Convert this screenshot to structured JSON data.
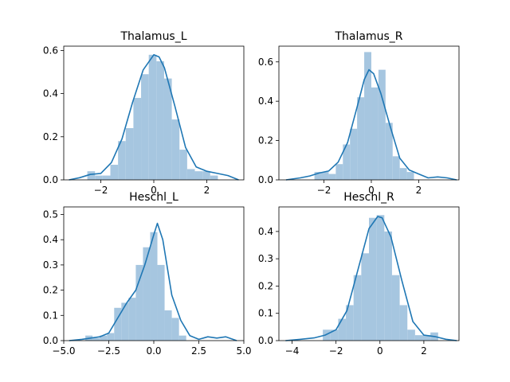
{
  "colors": {
    "bar": "#a6c6e0",
    "kde": "#1f77b4"
  },
  "chart_data": [
    {
      "type": "histogram",
      "title": "Thalamus_L",
      "xlim": [
        -3.4,
        3.4
      ],
      "ylim": [
        0,
        0.62
      ],
      "xticks": [
        -2,
        0,
        2
      ],
      "xtick_labels": [
        "−2",
        "0",
        "2"
      ],
      "yticks": [
        0.0,
        0.2,
        0.4,
        0.6
      ],
      "ytick_labels": [
        "0.0",
        "0.2",
        "0.4",
        "0.6"
      ],
      "bin_edges": [
        -2.51,
        -2.22,
        -1.93,
        -1.64,
        -1.35,
        -1.06,
        -0.77,
        -0.48,
        -0.19,
        0.1,
        0.39,
        0.68,
        0.97,
        1.26,
        1.55,
        1.84,
        2.13,
        2.42
      ],
      "bin_heights": [
        0.04,
        0.02,
        0.02,
        0.07,
        0.18,
        0.24,
        0.38,
        0.49,
        0.58,
        0.55,
        0.47,
        0.28,
        0.14,
        0.05,
        0.04,
        0.04,
        0.02
      ],
      "kde": {
        "x": [
          -3.2,
          -2.8,
          -2.4,
          -2.0,
          -1.6,
          -1.2,
          -0.8,
          -0.4,
          0.0,
          0.2,
          0.4,
          0.8,
          1.2,
          1.6,
          2.0,
          2.4,
          2.8,
          3.2
        ],
        "y": [
          0.0,
          0.01,
          0.025,
          0.03,
          0.08,
          0.19,
          0.36,
          0.51,
          0.58,
          0.57,
          0.52,
          0.34,
          0.15,
          0.06,
          0.04,
          0.03,
          0.02,
          0.0
        ]
      }
    },
    {
      "type": "histogram",
      "title": "Thalamus_R",
      "xlim": [
        -3.9,
        3.7
      ],
      "ylim": [
        0,
        0.68
      ],
      "xticks": [
        -2,
        0,
        2
      ],
      "xtick_labels": [
        "−2",
        "0",
        "2"
      ],
      "yticks": [
        0.0,
        0.2,
        0.4,
        0.6
      ],
      "ytick_labels": [
        "0.0",
        "0.2",
        "0.4",
        "0.6"
      ],
      "bin_edges": [
        -2.4,
        -2.1,
        -1.8,
        -1.5,
        -1.2,
        -0.9,
        -0.6,
        -0.3,
        0.0,
        0.3,
        0.6,
        0.9,
        1.2,
        1.5,
        1.8
      ],
      "bin_heights": [
        0.04,
        0.04,
        0.03,
        0.08,
        0.18,
        0.26,
        0.42,
        0.65,
        0.47,
        0.56,
        0.29,
        0.12,
        0.06,
        0.04
      ],
      "kde": {
        "x": [
          -3.6,
          -3.0,
          -2.6,
          -2.2,
          -1.8,
          -1.4,
          -1.0,
          -0.6,
          -0.3,
          -0.1,
          0.1,
          0.4,
          0.8,
          1.2,
          1.6,
          2.0,
          2.4,
          2.8,
          3.2,
          3.6
        ],
        "y": [
          0.0,
          0.01,
          0.02,
          0.035,
          0.045,
          0.09,
          0.19,
          0.37,
          0.51,
          0.56,
          0.54,
          0.44,
          0.27,
          0.11,
          0.05,
          0.03,
          0.01,
          0.015,
          0.01,
          0.0
        ]
      }
    },
    {
      "type": "histogram",
      "title": "Heschl_L",
      "xlim": [
        -5.0,
        5.0
      ],
      "ylim": [
        0,
        0.53
      ],
      "xticks": [
        -5.0,
        -2.5,
        0.0,
        2.5,
        5.0
      ],
      "xtick_labels": [
        "−5.0",
        "−2.5",
        "0.0",
        "2.5",
        "5.0"
      ],
      "yticks": [
        0.0,
        0.1,
        0.2,
        0.3,
        0.4,
        0.5
      ],
      "ytick_labels": [
        "0.0",
        "0.1",
        "0.2",
        "0.3",
        "0.4",
        "0.5"
      ],
      "bin_edges": [
        -3.8,
        -3.4,
        -3.0,
        -2.6,
        -2.2,
        -1.8,
        -1.4,
        -1.0,
        -0.6,
        -0.2,
        0.2,
        0.6,
        1.0,
        1.4,
        1.8
      ],
      "bin_heights": [
        0.02,
        0.01,
        0.02,
        0.03,
        0.13,
        0.15,
        0.17,
        0.3,
        0.37,
        0.43,
        0.3,
        0.12,
        0.09,
        0.02
      ],
      "kde": {
        "x": [
          -4.7,
          -4.0,
          -3.5,
          -3.0,
          -2.5,
          -2.0,
          -1.5,
          -1.0,
          -0.5,
          0.0,
          0.2,
          0.5,
          1.0,
          1.5,
          2.0,
          2.5,
          3.0,
          3.5,
          4.0,
          4.6
        ],
        "y": [
          0.0,
          0.005,
          0.01,
          0.015,
          0.03,
          0.09,
          0.15,
          0.2,
          0.3,
          0.42,
          0.465,
          0.4,
          0.18,
          0.08,
          0.02,
          0.005,
          0.015,
          0.01,
          0.015,
          0.0
        ]
      }
    },
    {
      "type": "histogram",
      "title": "Heschl_R",
      "xlim": [
        -4.6,
        3.6
      ],
      "ylim": [
        0,
        0.49
      ],
      "xticks": [
        -4,
        -2,
        0,
        2
      ],
      "xtick_labels": [
        "−4",
        "−2",
        "0",
        "2"
      ],
      "yticks": [
        0.0,
        0.1,
        0.2,
        0.3,
        0.4
      ],
      "ytick_labels": [
        "0.0",
        "0.1",
        "0.2",
        "0.3",
        "0.4"
      ],
      "bin_edges": [
        -2.6,
        -2.25,
        -1.9,
        -1.55,
        -1.2,
        -0.85,
        -0.5,
        -0.15,
        0.2,
        0.55,
        0.9,
        1.25,
        1.6,
        1.95,
        2.3,
        2.65
      ],
      "bin_heights": [
        0.04,
        0.04,
        0.08,
        0.13,
        0.24,
        0.32,
        0.45,
        0.46,
        0.4,
        0.24,
        0.13,
        0.04,
        0.02,
        0.02,
        0.03
      ],
      "kde": {
        "x": [
          -4.3,
          -3.6,
          -3.0,
          -2.5,
          -2.0,
          -1.5,
          -1.0,
          -0.5,
          -0.1,
          0.1,
          0.5,
          1.0,
          1.5,
          2.0,
          2.5,
          3.0,
          3.5
        ],
        "y": [
          0.0,
          0.005,
          0.01,
          0.02,
          0.04,
          0.11,
          0.26,
          0.41,
          0.455,
          0.45,
          0.38,
          0.22,
          0.07,
          0.02,
          0.015,
          0.005,
          0.0
        ]
      }
    }
  ]
}
